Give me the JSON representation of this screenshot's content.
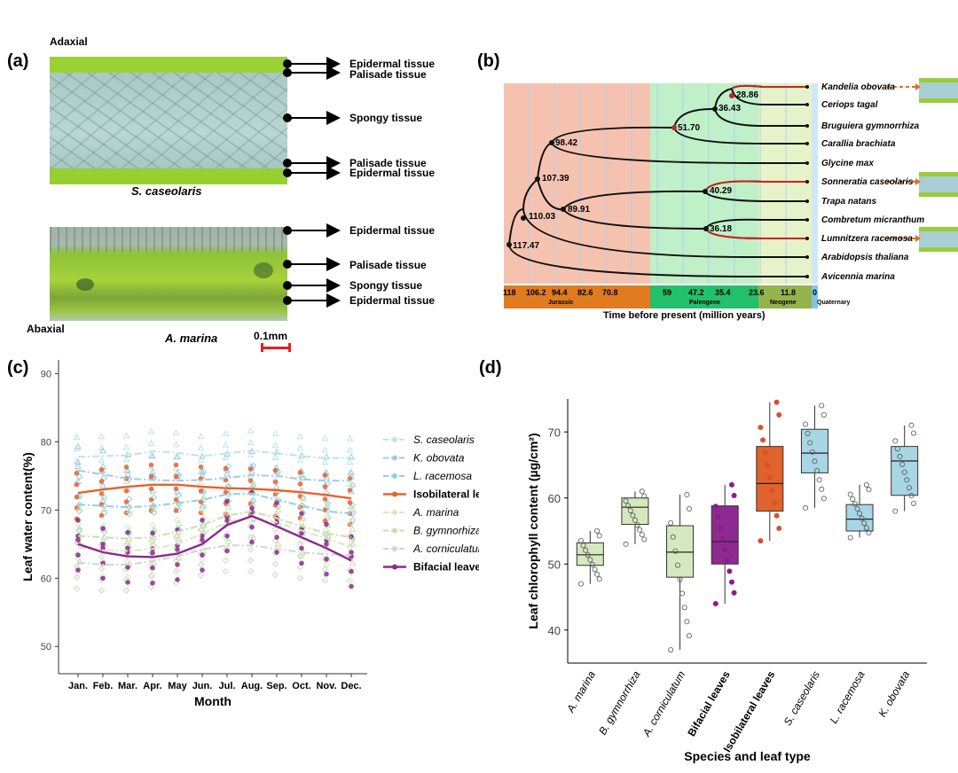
{
  "panels": {
    "a": "(a)",
    "b": "(b)",
    "c": "(c)",
    "d": "(d)"
  },
  "panel_a": {
    "adaxial": "Adaxial",
    "abaxial": "Abaxial",
    "species_top": "S. caseolaris",
    "species_bottom": "A. marina",
    "scale": "0.1mm",
    "top_labels": [
      "Epidermal tissue",
      "Palisade tissue",
      "Spongy tissue",
      "Palisade tissue",
      "Epidermal tissue"
    ],
    "bottom_labels": [
      "Epidermal tissue",
      "Palisade tissue",
      "Spongy tissue",
      "Epidermal tissue"
    ]
  },
  "panel_b": {
    "taxa": [
      "Kandelia obovata",
      "Ceriops tagal",
      "Bruguiera gymnorrhiza",
      "Carallia brachiata",
      "Glycine max",
      "Sonneratia caseolaris",
      "Trapa natans",
      "Combretum micranthum",
      "Lumnitzera racemosa",
      "Arabidopsis thaliana",
      "Avicennia marina"
    ],
    "node_ages": [
      "28.86",
      "36.43",
      "51.70",
      "98.42",
      "107.39",
      "40.29",
      "89.91",
      "36.18",
      "110.03",
      "117.47"
    ],
    "ticks": [
      "118",
      "106.2",
      "94.4",
      "82.6",
      "70.8",
      "59",
      "47.2",
      "35.4",
      "23.6",
      "11.8",
      "0"
    ],
    "eras": [
      "Jurassic",
      "Paleogene",
      "Neogene",
      "Quaternary"
    ],
    "xlabel": "Time before present (million years)"
  },
  "chart_data": [
    {
      "type": "line",
      "panel": "c",
      "xlabel": "Month",
      "ylabel": "Leaf water content(%)",
      "categories": [
        "Jan.",
        "Feb.",
        "Mar.",
        "Apr.",
        "May",
        "Jun.",
        "Jul.",
        "Aug.",
        "Sep.",
        "Oct.",
        "Nov.",
        "Dec."
      ],
      "yticks": [
        "90",
        "80",
        "70",
        "60",
        "50"
      ],
      "ylim": [
        46,
        92
      ],
      "legend_position": "right",
      "series": [
        {
          "name": "S. caseolaris",
          "color": "#bde3ee",
          "values": [
            77.8,
            77.9,
            78,
            78.6,
            78.4,
            77.9,
            78.3,
            78.7,
            78.3,
            77.9,
            77.6,
            77.6
          ]
        },
        {
          "name": "K. obovata",
          "color": "#9fcbe0",
          "values": [
            75.8,
            75.2,
            74.6,
            74.4,
            74.3,
            74.4,
            74.7,
            75.1,
            75.0,
            74.5,
            74.3,
            74.3
          ]
        },
        {
          "name": "L. racemosa",
          "color": "#8fd0e0",
          "values": [
            70.8,
            70.6,
            70.4,
            70.6,
            71.0,
            71.5,
            72.3,
            72.4,
            71.5,
            70.6,
            69.8,
            69.5
          ]
        },
        {
          "name": "Isobilateral leaves",
          "color": "#e8622a",
          "values": [
            72.5,
            73.0,
            73.4,
            73.7,
            73.7,
            73.4,
            73.2,
            73.1,
            72.9,
            72.6,
            72.2,
            71.7
          ]
        },
        {
          "name": "A. marina",
          "color": "#dbe8c2",
          "values": [
            64.5,
            64.1,
            64.0,
            64.3,
            65.0,
            66.5,
            68.2,
            69.0,
            68.2,
            67.0,
            65.8,
            64.6
          ]
        },
        {
          "name": "B. gymnorhiza",
          "color": "#c9dfae",
          "values": [
            66.2,
            66.0,
            65.8,
            66.0,
            66.8,
            67.8,
            69.2,
            69.8,
            68.8,
            67.6,
            66.6,
            66.0
          ]
        },
        {
          "name": "A. corniculatum",
          "color": "#cfd7c6",
          "values": [
            62.3,
            62.0,
            62.0,
            62.5,
            63.2,
            64.2,
            64.8,
            64.8,
            64.3,
            63.8,
            63.5,
            63.4
          ]
        },
        {
          "name": "Bifacial leaves",
          "color": "#8b2a8e",
          "values": [
            65.0,
            63.8,
            63.2,
            63.1,
            63.6,
            65.0,
            67.8,
            69.1,
            67.6,
            66.0,
            64.4,
            62.6
          ]
        }
      ]
    },
    {
      "type": "box",
      "panel": "d",
      "xlabel": "Species and leaf type",
      "ylabel": "Leaf chlorophyll content (µg/cm²)",
      "yticks": [
        "70",
        "60",
        "50",
        "40"
      ],
      "ylim": [
        35,
        75
      ],
      "categories": [
        "A. marina",
        "B. gymnorrhiza",
        "A. corniculatum",
        "Bifacial leaves",
        "Isobilateral leaves",
        "S. caseolaris",
        "L. racemosa",
        "K. obovata"
      ],
      "boxes": [
        {
          "name": "A. marina",
          "color": "#d6e8bf",
          "q1": 49.8,
          "median": 51.4,
          "q3": 53.2,
          "min": 47.0,
          "max": 55.0
        },
        {
          "name": "B. gymnorrhiza",
          "color": "#d6e8bf",
          "q1": 56.0,
          "median": 58.6,
          "q3": 60.0,
          "min": 53.0,
          "max": 61.0
        },
        {
          "name": "A. corniculatum",
          "color": "#d6e8bf",
          "q1": 48.0,
          "median": 51.8,
          "q3": 55.8,
          "min": 37.0,
          "max": 60.5
        },
        {
          "name": "Bifacial leaves",
          "color": "#8e2a8f",
          "q1": 50.0,
          "median": 53.4,
          "q3": 58.8,
          "min": 44.0,
          "max": 62.0
        },
        {
          "name": "Isobilateral leaves",
          "color": "#e0622c",
          "q1": 58.0,
          "median": 62.2,
          "q3": 67.8,
          "min": 53.5,
          "max": 74.5
        },
        {
          "name": "S. caseolaris",
          "color": "#a8d6e4",
          "q1": 63.8,
          "median": 66.8,
          "q3": 70.4,
          "min": 58.5,
          "max": 74.0
        },
        {
          "name": "L. racemosa",
          "color": "#a8d6e4",
          "q1": 55.0,
          "median": 56.8,
          "q3": 59.0,
          "min": 54.0,
          "max": 62.0
        },
        {
          "name": "K. obovata",
          "color": "#a8d6e4",
          "q1": 60.4,
          "median": 65.6,
          "q3": 67.8,
          "min": 58.0,
          "max": 71.0
        }
      ]
    }
  ]
}
